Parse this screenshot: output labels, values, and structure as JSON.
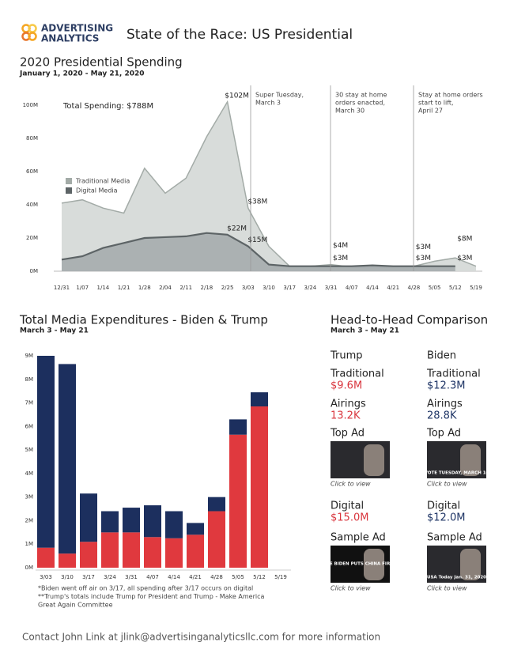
{
  "header": {
    "logo": [
      "ADVERTISING",
      "ANALYTICS"
    ],
    "title": "State of the Race: US Presidential"
  },
  "chart_data": [
    {
      "type": "area",
      "title": "2020 Presidential Spending",
      "subtitle": "January 1, 2020 - May 21, 2020",
      "categories": [
        "12/31",
        "1/07",
        "1/14",
        "1/21",
        "1/28",
        "2/04",
        "2/11",
        "2/18",
        "2/25",
        "3/03",
        "3/10",
        "3/17",
        "3/24",
        "3/31",
        "4/07",
        "4/14",
        "4/21",
        "4/28",
        "5/05",
        "5/12",
        "5/19"
      ],
      "series": [
        {
          "name": "Traditional Media",
          "color": "#d6dad8",
          "values": [
            41,
            43,
            38,
            35,
            62,
            47,
            56,
            81,
            102,
            38,
            15,
            3,
            3,
            4,
            2.5,
            2,
            2.5,
            3,
            6,
            8,
            3
          ],
          "value_labels": [
            null,
            null,
            null,
            null,
            null,
            null,
            null,
            null,
            "$102M",
            "$38M",
            null,
            null,
            null,
            "$4M",
            null,
            null,
            null,
            "$3M",
            null,
            "$8M",
            null
          ]
        },
        {
          "name": "Digital Media",
          "color": "#a9aeb0",
          "values": [
            7,
            9,
            14,
            17,
            20,
            20.5,
            21,
            23,
            22,
            15,
            4,
            3,
            3,
            3,
            3,
            3.5,
            3,
            3,
            3,
            3,
            null
          ],
          "value_labels": [
            null,
            null,
            null,
            null,
            null,
            null,
            null,
            null,
            "$22M",
            "$15M",
            null,
            null,
            null,
            "$3M",
            null,
            null,
            null,
            "$3M",
            null,
            "$3M",
            null
          ]
        }
      ],
      "ylim": [
        0,
        100
      ],
      "yticks": [
        {
          "value": 0,
          "label": "0M"
        },
        {
          "value": 20,
          "label": "20M"
        },
        {
          "value": 40,
          "label": "40M"
        },
        {
          "value": 60,
          "label": "60M"
        },
        {
          "value": 80,
          "label": "80M"
        },
        {
          "value": 100,
          "label": "100M"
        }
      ],
      "grid": false,
      "legend": "left",
      "annotations": {
        "total": "Total Spending: $788M",
        "events": [
          [
            "Super Tuesday,",
            "March 3"
          ],
          [
            "30 stay at home",
            "orders enacted,",
            "March 30"
          ],
          [
            "Stay at home orders",
            "start to lift,",
            "April 27"
          ]
        ]
      }
    },
    {
      "type": "bar",
      "stacked": true,
      "title": "Total Media Expenditures - Biden & Trump",
      "subtitle": "March 3 - May 21",
      "categories": [
        "3/03",
        "3/10",
        "3/17",
        "3/24",
        "3/31",
        "4/07",
        "4/14",
        "4/21",
        "4/28",
        "5/05",
        "5/12",
        "5/19"
      ],
      "series": [
        {
          "name": "Trump",
          "color": "#e0393e",
          "values": [
            0.85,
            0.6,
            1.1,
            1.5,
            1.5,
            1.3,
            1.25,
            1.4,
            2.4,
            5.65,
            6.85,
            null
          ]
        },
        {
          "name": "Biden",
          "color": "#1c2f5e",
          "values": [
            8.15,
            8.05,
            2.05,
            0.9,
            1.05,
            1.35,
            1.15,
            0.5,
            0.6,
            0.65,
            0.6,
            null
          ]
        }
      ],
      "ylim": [
        0,
        9
      ],
      "yticks": [
        {
          "value": 0,
          "label": "0M"
        },
        {
          "value": 1,
          "label": "1M"
        },
        {
          "value": 2,
          "label": "2M"
        },
        {
          "value": 3,
          "label": "3M"
        },
        {
          "value": 4,
          "label": "4M"
        },
        {
          "value": 5,
          "label": "5M"
        },
        {
          "value": 6,
          "label": "6M"
        },
        {
          "value": 7,
          "label": "7M"
        },
        {
          "value": 8,
          "label": "8M"
        },
        {
          "value": 9,
          "label": "9M"
        }
      ],
      "grid": false,
      "footnotes": [
        [
          "*Biden went off air on 3/17, all spending after 3/17 occurs on digital"
        ],
        [
          "**Trump's totals include Trump for President and Trump - Make America",
          "Great Again Committee"
        ]
      ]
    }
  ],
  "comparison": {
    "title": "Head-to-Head Comparison",
    "subtitle": "March 3 - May 21",
    "columns": [
      {
        "name": "Trump",
        "color": "#d9363e",
        "items": [
          {
            "label": "Traditional",
            "value": "$9.6M"
          },
          {
            "label": "Airings",
            "value": "13.2K"
          },
          {
            "label": "Top Ad",
            "caption": "Click to view"
          },
          {
            "label": "Digital",
            "value": "$15.0M"
          },
          {
            "label": "Sample Ad",
            "caption": "Click to view",
            "image_text": "JOE BIDEN PUTS CHINA FIRST"
          }
        ]
      },
      {
        "name": "Biden",
        "color": "#1f3566",
        "items": [
          {
            "label": "Traditional",
            "value": "$12.3M"
          },
          {
            "label": "Airings",
            "value": "28.8K"
          },
          {
            "label": "Top Ad",
            "caption": "Click to view",
            "image_text": "VOTE TUESDAY, MARCH 10"
          },
          {
            "label": "Digital",
            "value": "$12.0M"
          },
          {
            "label": "Sample Ad",
            "caption": "Click to view",
            "image_text": "USA Today Jan. 31, 2020"
          }
        ]
      }
    ]
  },
  "footer": "Contact John Link at jlink@advertisinganalyticsllc.com for more information"
}
